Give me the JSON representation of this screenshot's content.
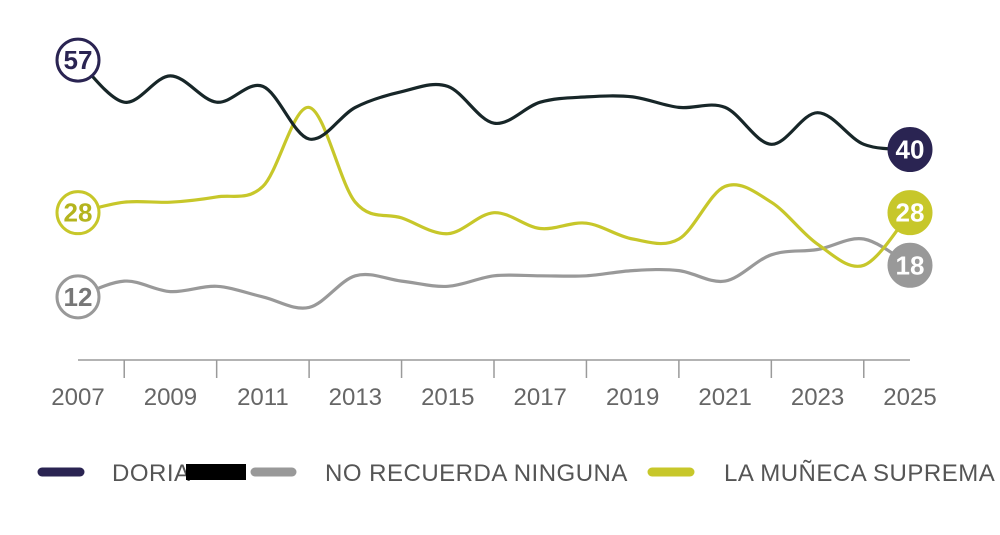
{
  "chart_data": {
    "type": "line",
    "title": "",
    "xlabel": "",
    "ylabel": "",
    "x": [
      2007,
      2008,
      2009,
      2010,
      2011,
      2012,
      2013,
      2014,
      2015,
      2016,
      2017,
      2018,
      2019,
      2020,
      2021,
      2022,
      2023,
      2024,
      2025
    ],
    "x_ticks": [
      "2007",
      "2009",
      "2011",
      "2013",
      "2015",
      "2017",
      "2019",
      "2021",
      "2023",
      "2025"
    ],
    "ylim": [
      0,
      65
    ],
    "series": [
      {
        "name": "DORIA",
        "color": "#2a2452",
        "line_color": "#172628",
        "values": [
          57,
          49,
          54,
          49,
          52,
          42,
          48,
          51,
          52,
          45,
          49,
          50,
          50,
          48,
          48,
          41,
          47,
          41,
          40
        ],
        "start_label": "57",
        "end_label": "40"
      },
      {
        "name": "NO RECUERDA NINGUNA",
        "color": "#999999",
        "line_color": "#999999",
        "values": [
          12,
          15,
          13,
          14,
          12,
          10,
          16,
          15,
          14,
          16,
          16,
          16,
          17,
          17,
          15,
          20,
          21,
          23,
          18
        ],
        "start_label": "12",
        "end_label": "18"
      },
      {
        "name": "LA MUÑECA SUPREMA",
        "color": "#c7c72a",
        "line_color": "#c7c72a",
        "values": [
          28,
          30,
          30,
          31,
          33,
          48,
          30,
          27,
          24,
          28,
          25,
          26,
          23,
          23,
          33,
          30,
          22,
          18,
          28
        ],
        "start_label": "28",
        "end_label": "28"
      }
    ],
    "legend": {
      "position": "bottom",
      "entries": [
        "DORIA",
        "NO RECUERDA NINGUNA",
        "LA MUÑECA SUPREMA"
      ]
    },
    "grid": false
  }
}
